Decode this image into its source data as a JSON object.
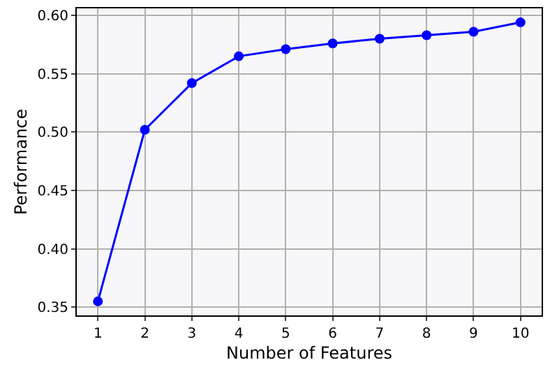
{
  "chart_data": {
    "type": "line",
    "xlabel": "Number of Features",
    "ylabel": "Performance",
    "x": [
      1,
      2,
      3,
      4,
      5,
      6,
      7,
      8,
      9,
      10
    ],
    "series": [
      {
        "color": "#0000ff",
        "values": [
          0.355,
          0.502,
          0.542,
          0.565,
          0.571,
          0.576,
          0.58,
          0.583,
          0.586,
          0.594
        ]
      }
    ],
    "xlim": [
      0.55,
      10.45
    ],
    "ylim": [
      0.343,
      0.606
    ],
    "xticks": [
      1,
      2,
      3,
      4,
      5,
      6,
      7,
      8,
      9,
      10
    ],
    "yticks": [
      {
        "value": 0.35,
        "label": "0.35"
      },
      {
        "value": 0.4,
        "label": "0.40"
      },
      {
        "value": 0.45,
        "label": "0.45"
      },
      {
        "value": 0.5,
        "label": "0.50"
      },
      {
        "value": 0.55,
        "label": "0.55"
      },
      {
        "value": 0.6,
        "label": "0.60"
      }
    ],
    "grid": true,
    "marker": "circle",
    "line_style": "solid",
    "legend": false
  }
}
